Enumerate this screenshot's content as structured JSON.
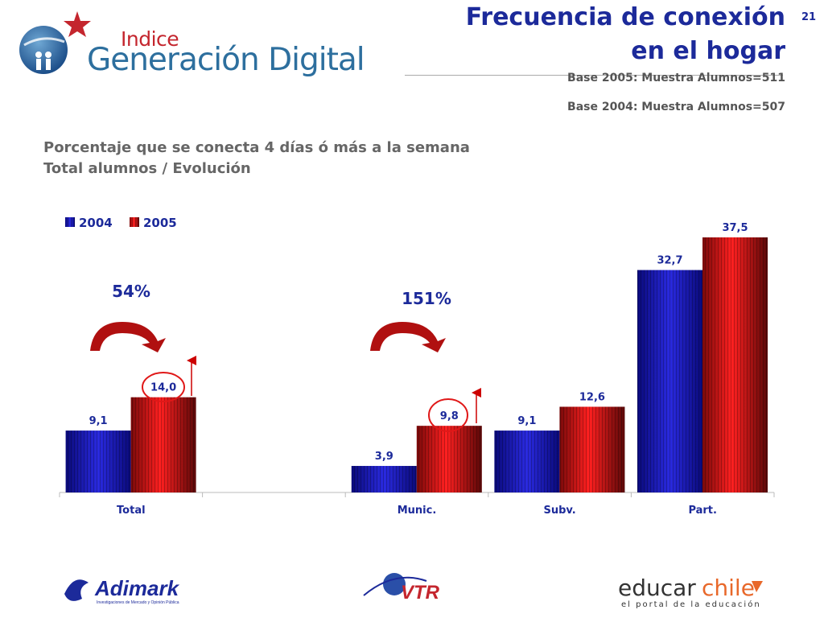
{
  "header": {
    "logo_small": "Indice",
    "logo_main": "Generación Digital",
    "title_line1": "Frecuencia de conexión",
    "title_line2": "en el hogar",
    "page_number": "21",
    "base_2005": "Base 2005: Muestra Alumnos=511",
    "base_2004": "Base 2004: Muestra Alumnos=507"
  },
  "subtitle": {
    "line1": "Porcentaje que se conecta  4 días ó más a la semana",
    "line2": "Total alumnos / Evolución"
  },
  "chart_data": {
    "type": "bar",
    "categories": [
      "Total",
      "",
      "Munic.",
      "Subv.",
      "Part."
    ],
    "series": [
      {
        "name": "2004",
        "values": [
          9.1,
          null,
          3.9,
          9.1,
          32.7
        ],
        "labels": [
          "9,1",
          "",
          "3,9",
          "9,1",
          "32,7"
        ],
        "color": "#1a1aa6"
      },
      {
        "name": "2005",
        "values": [
          14.0,
          null,
          9.8,
          12.6,
          37.5
        ],
        "labels": [
          "14,0",
          "",
          "9,8",
          "12,6",
          "37,5"
        ],
        "color": "#e01818"
      }
    ],
    "ylim": [
      0,
      37.5
    ],
    "legend_position": "top-left",
    "annotations": [
      {
        "text": "54%",
        "category": "Total"
      },
      {
        "text": "151%",
        "category": "Munic."
      }
    ],
    "highlighted": [
      "14,0",
      "9,8"
    ]
  },
  "footer": {
    "logo_adimark": "Adimark",
    "logo_adimark_sub": "Investigaciones de Mercado y Opinión Pública",
    "logo_vtr": "VTR",
    "logo_educar": "educar",
    "logo_chile": "chile",
    "logo_educar_sub": "el portal de la educación"
  }
}
